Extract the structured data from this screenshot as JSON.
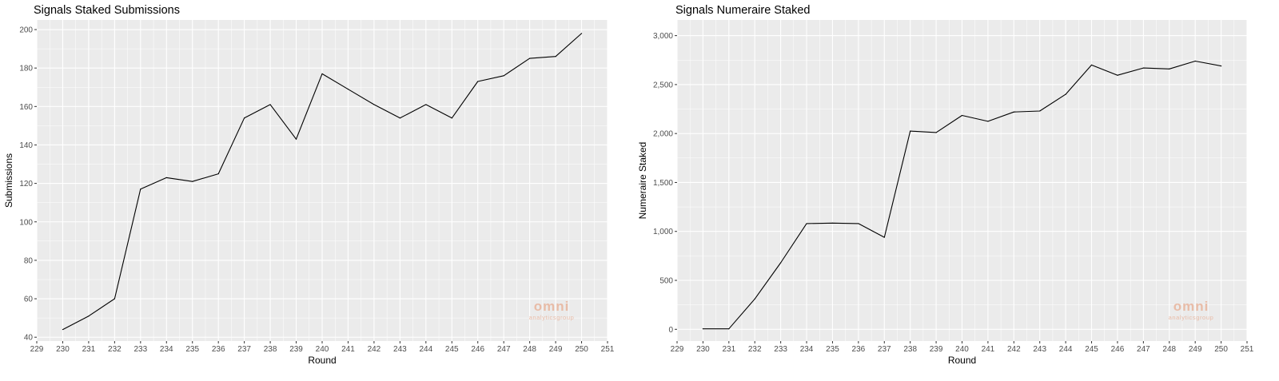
{
  "watermark": {
    "brand": "omni",
    "tagline": "analyticsgroup",
    "color": "#e8b49c"
  },
  "theme": {
    "panel_bg": "#ebebeb",
    "grid_color": "#ffffff",
    "line_color": "#000000",
    "tick_color": "#333333"
  },
  "chart_data": [
    {
      "type": "line",
      "title": "Signals Staked Submissions",
      "xlabel": "Round",
      "ylabel": "Submissions",
      "xlim": [
        229,
        251
      ],
      "ylim": [
        38,
        205
      ],
      "xticks": [
        229,
        230,
        231,
        232,
        233,
        234,
        235,
        236,
        237,
        238,
        239,
        240,
        241,
        242,
        243,
        244,
        245,
        246,
        247,
        248,
        249,
        250,
        251
      ],
      "yticks": [
        40,
        60,
        80,
        100,
        120,
        140,
        160,
        180,
        200
      ],
      "ytick_labels": [
        "40",
        "60",
        "80",
        "100",
        "120",
        "140",
        "160",
        "180",
        "200"
      ],
      "grid": true,
      "x": [
        230,
        231,
        232,
        233,
        234,
        235,
        236,
        237,
        238,
        239,
        240,
        241,
        242,
        243,
        244,
        245,
        246,
        247,
        248,
        249,
        250
      ],
      "y": [
        44,
        51,
        60,
        117,
        123,
        121,
        125,
        154,
        161,
        143,
        177,
        169,
        161,
        154,
        161,
        154,
        173,
        176,
        185,
        186,
        198
      ]
    },
    {
      "type": "line",
      "title": "Signals Numeraire Staked",
      "xlabel": "Round",
      "ylabel": "Numeraire Staked",
      "xlim": [
        229,
        251
      ],
      "ylim": [
        -120,
        3160
      ],
      "xticks": [
        229,
        230,
        231,
        232,
        233,
        234,
        235,
        236,
        237,
        238,
        239,
        240,
        241,
        242,
        243,
        244,
        245,
        246,
        247,
        248,
        249,
        250,
        251
      ],
      "yticks": [
        0,
        500,
        1000,
        1500,
        2000,
        2500,
        3000
      ],
      "ytick_labels": [
        "0",
        "500",
        "1,000",
        "1,500",
        "2,000",
        "2,500",
        "3,000"
      ],
      "grid": true,
      "x": [
        230,
        231,
        232,
        233,
        234,
        235,
        236,
        237,
        238,
        239,
        240,
        241,
        242,
        243,
        244,
        245,
        246,
        247,
        248,
        249,
        250
      ],
      "y": [
        5,
        5,
        310,
        680,
        1080,
        1085,
        1080,
        940,
        2025,
        2010,
        2185,
        2125,
        2220,
        2230,
        2400,
        2700,
        2595,
        2670,
        2660,
        2740,
        2690
      ]
    }
  ]
}
